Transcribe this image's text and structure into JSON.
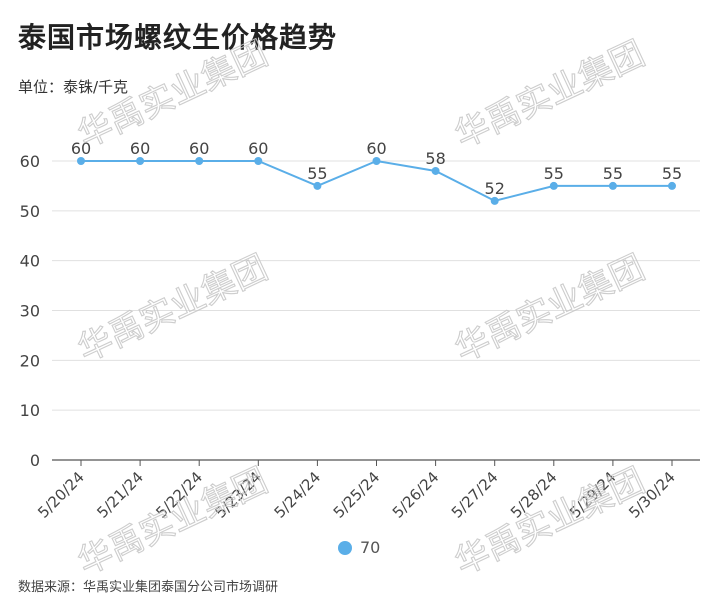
{
  "title": "泰国市场螺纹生价格趋势",
  "unit_label": "单位：泰铢/千克",
  "source": "数据来源：华禹实业集团泰国分公司市场调研",
  "watermark": "华禹实业集团",
  "colors": {
    "line": "#5aaee8",
    "grid": "#e0e0e0",
    "axis": "#555555"
  },
  "chart_data": {
    "type": "line",
    "title": "泰国市场螺纹生价格趋势",
    "xlabel": "",
    "ylabel": "单位：泰铢/千克",
    "categories": [
      "5/20/24",
      "5/21/24",
      "5/22/24",
      "5/23/24",
      "5/24/24",
      "5/25/24",
      "5/26/24",
      "5/27/24",
      "5/28/24",
      "5/29/24",
      "5/30/24"
    ],
    "series": [
      {
        "name": "70",
        "values": [
          60,
          60,
          60,
          60,
          55,
          60,
          58,
          52,
          55,
          55,
          55
        ]
      }
    ],
    "ylim": [
      0,
      60
    ],
    "yticks": [
      "0",
      "10",
      "20",
      "30",
      "40",
      "50",
      "60"
    ],
    "grid": true,
    "legend": "bottom-center"
  }
}
